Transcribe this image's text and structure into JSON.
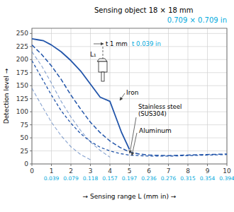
{
  "chart_data": {
    "type": "line",
    "title": "Sensing object 18 × 18 mm",
    "xlabel": "→ Sensing range L (mm in) →",
    "ylabel": "Detection level →",
    "xlim": [
      0,
      10
    ],
    "ylim": [
      0,
      260
    ],
    "xticks": [
      0,
      1,
      2,
      3,
      4,
      5,
      6,
      7,
      8,
      9,
      10
    ],
    "yticks": [
      0,
      25,
      50,
      75,
      100,
      125,
      150,
      175,
      200,
      225,
      250
    ],
    "grid": true,
    "series": [
      {
        "color": "#2255aa",
        "line_style": "solid",
        "x": [
          0,
          0.3,
          0.6,
          1.0,
          1.5,
          2.0,
          2.5,
          3.0,
          3.5,
          4.0,
          4.3,
          4.6,
          5.0
        ],
        "values": [
          240,
          238,
          236,
          228,
          215,
          198,
          178,
          153,
          128,
          120,
          90,
          60,
          28
        ]
      },
      {
        "color": "#2255aa",
        "line_style": "dashed",
        "x": [
          0,
          0.5,
          1.0,
          1.5,
          2.0,
          2.5,
          3.0,
          3.5,
          4.0,
          4.5,
          5.0,
          5.5,
          6.0,
          7.0,
          8.0,
          9.0,
          10.0
        ],
        "values": [
          228,
          210,
          188,
          162,
          132,
          105,
          80,
          60,
          44,
          32,
          23,
          19,
          17,
          16,
          17,
          18,
          19
        ]
      },
      {
        "color": "#2255aa",
        "line_style": "dashed",
        "x": [
          0,
          0.5,
          1.0,
          1.5,
          2.0,
          2.5,
          3.0,
          3.5,
          4.0,
          4.5,
          5.0,
          6.0,
          7.0,
          8.0,
          9.0,
          10.0
        ],
        "values": [
          198,
          165,
          132,
          102,
          78,
          58,
          43,
          32,
          25,
          20,
          17,
          15,
          15,
          16,
          17,
          18
        ]
      },
      {
        "color": "#2255aa",
        "line_style": "dashed",
        "x": [
          0,
          0.5,
          1.0,
          1.5,
          2.0,
          2.5,
          3.0,
          3.5,
          4.0
        ],
        "values": [
          215,
          188,
          155,
          120,
          90,
          64,
          42,
          26,
          13
        ]
      },
      {
        "color": "#2255aa",
        "line_style": "dashed",
        "x": [
          0,
          0.5,
          1.0,
          1.5,
          2.0,
          2.5,
          3.0
        ],
        "values": [
          145,
          112,
          80,
          54,
          33,
          18,
          8
        ]
      }
    ],
    "annotations": [
      {
        "text": "0.709 × 0.709 in",
        "color": "#00aadd"
      },
      {
        "text": "t 1 mm"
      },
      {
        "text": "t 0.039 in",
        "color": "#00aadd"
      },
      {
        "text": "L₁"
      },
      {
        "text": "Iron"
      },
      {
        "text": "Stainless steel\n(SUS304)"
      },
      {
        "text": "Aluminum"
      },
      {
        "text": "0.039",
        "x": 1,
        "color": "#00aadd"
      },
      {
        "text": "0.079",
        "x": 2,
        "color": "#00aadd"
      },
      {
        "text": "0.118",
        "x": 3,
        "color": "#00aadd"
      },
      {
        "text": "0.157",
        "x": 4,
        "color": "#00aadd"
      },
      {
        "text": "0.197",
        "x": 5,
        "color": "#00aadd"
      },
      {
        "text": "0.236",
        "x": 6,
        "color": "#00aadd"
      },
      {
        "text": "0.276",
        "x": 7,
        "color": "#00aadd"
      },
      {
        "text": "0.315",
        "x": 8,
        "color": "#00aadd"
      },
      {
        "text": "0.354",
        "x": 9,
        "color": "#00aadd"
      },
      {
        "text": "0.394",
        "x": 10,
        "color": "#00aadd"
      }
    ]
  }
}
